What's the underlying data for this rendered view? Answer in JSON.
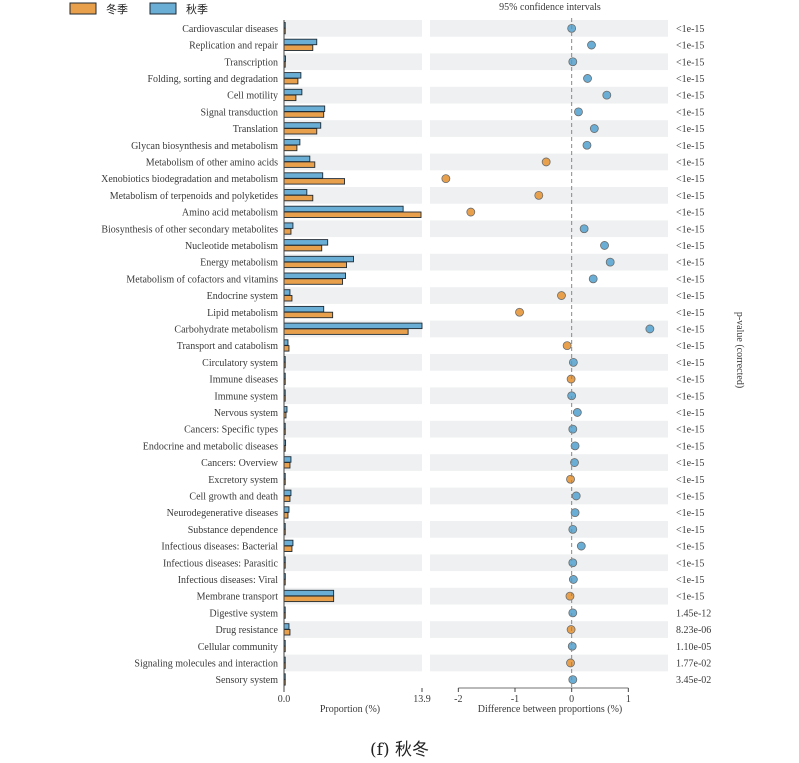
{
  "caption": "(f) 秋冬",
  "chart_data": {
    "type": "bar",
    "title": "95% confidence intervals",
    "legend": [
      {
        "name": "冬季",
        "color": "#e8a04d"
      },
      {
        "name": "秋季",
        "color": "#6aaed6"
      }
    ],
    "left_panel": {
      "xlabel": "Proportion (%)",
      "xlim": [
        0,
        13.9
      ],
      "xticks": [
        "0.0",
        "13.9"
      ]
    },
    "right_panel": {
      "xlabel": "Difference between proportions (%)",
      "xlim": [
        -2.5,
        1.7
      ],
      "xticks": [
        -2,
        -1,
        0,
        1
      ]
    },
    "pvalue_axis_label": "p-value (corrected)",
    "categories": [
      "Cardiovascular diseases",
      "Replication and repair",
      "Transcription",
      "Folding, sorting and degradation",
      "Cell motility",
      "Signal transduction",
      "Translation",
      "Glycan biosynthesis and metabolism",
      "Metabolism of other amino acids",
      "Xenobiotics biodegradation and metabolism",
      "Metabolism of terpenoids and polyketides",
      "Amino acid metabolism",
      "Biosynthesis of other secondary metabolites",
      "Nucleotide metabolism",
      "Energy metabolism",
      "Metabolism of cofactors and vitamins",
      "Endocrine system",
      "Lipid metabolism",
      "Carbohydrate metabolism",
      "Transport and catabolism",
      "Circulatory system",
      "Immune diseases",
      "Immune system",
      "Nervous system",
      "Cancers: Specific types",
      "Endocrine and metabolic diseases",
      "Cancers: Overview",
      "Excretory system",
      "Cell growth and death",
      "Neurodegenerative diseases",
      "Substance dependence",
      "Infectious diseases: Bacterial",
      "Infectious diseases: Parasitic",
      "Infectious diseases: Viral",
      "Membrane transport",
      "Digestive system",
      "Drug resistance",
      "Cellular community",
      "Signaling molecules and interaction",
      "Sensory system"
    ],
    "series": [
      {
        "name": "秋季",
        "color": "#6aaed6",
        "values": [
          0.05,
          3.3,
          0.15,
          1.7,
          1.8,
          4.1,
          3.7,
          1.6,
          2.6,
          3.9,
          2.3,
          12.0,
          0.9,
          4.4,
          7.0,
          6.2,
          0.6,
          4.0,
          13.9,
          0.4,
          0.12,
          0.05,
          0.07,
          0.3,
          0.12,
          0.16,
          0.7,
          0.05,
          0.7,
          0.5,
          0.05,
          0.9,
          0.12,
          0.13,
          5.0,
          0.05,
          0.5,
          0.05,
          0.05,
          0.04
        ]
      },
      {
        "name": "冬季",
        "color": "#e8a04d",
        "values": [
          0.04,
          2.9,
          0.08,
          1.4,
          1.2,
          4.0,
          3.3,
          1.3,
          3.1,
          6.1,
          2.9,
          13.8,
          0.7,
          3.8,
          6.3,
          5.9,
          0.8,
          4.9,
          12.5,
          0.5,
          0.07,
          0.07,
          0.06,
          0.2,
          0.07,
          0.08,
          0.6,
          0.06,
          0.6,
          0.4,
          0.03,
          0.8,
          0.05,
          0.06,
          5.0,
          0.04,
          0.6,
          0.04,
          0.07,
          0.03
        ]
      }
    ],
    "difference": [
      0.0,
      0.35,
      0.02,
      0.28,
      0.62,
      0.12,
      0.4,
      0.27,
      -0.45,
      -2.22,
      -0.58,
      -1.78,
      0.22,
      0.58,
      0.68,
      0.38,
      -0.18,
      -0.92,
      1.38,
      -0.08,
      0.03,
      -0.01,
      0.0,
      0.1,
      0.02,
      0.06,
      0.05,
      -0.02,
      0.08,
      0.06,
      0.02,
      0.17,
      0.02,
      0.03,
      -0.03,
      0.02,
      -0.01,
      0.01,
      -0.02,
      0.02
    ],
    "p_values": [
      "<1e-15",
      "<1e-15",
      "<1e-15",
      "<1e-15",
      "<1e-15",
      "<1e-15",
      "<1e-15",
      "<1e-15",
      "<1e-15",
      "<1e-15",
      "<1e-15",
      "<1e-15",
      "<1e-15",
      "<1e-15",
      "<1e-15",
      "<1e-15",
      "<1e-15",
      "<1e-15",
      "<1e-15",
      "<1e-15",
      "<1e-15",
      "<1e-15",
      "<1e-15",
      "<1e-15",
      "<1e-15",
      "<1e-15",
      "<1e-15",
      "<1e-15",
      "<1e-15",
      "<1e-15",
      "<1e-15",
      "<1e-15",
      "<1e-15",
      "<1e-15",
      "<1e-15",
      "1.45e-12",
      "8.23e-06",
      "1.10e-05",
      "1.77e-02",
      "3.45e-02"
    ]
  }
}
